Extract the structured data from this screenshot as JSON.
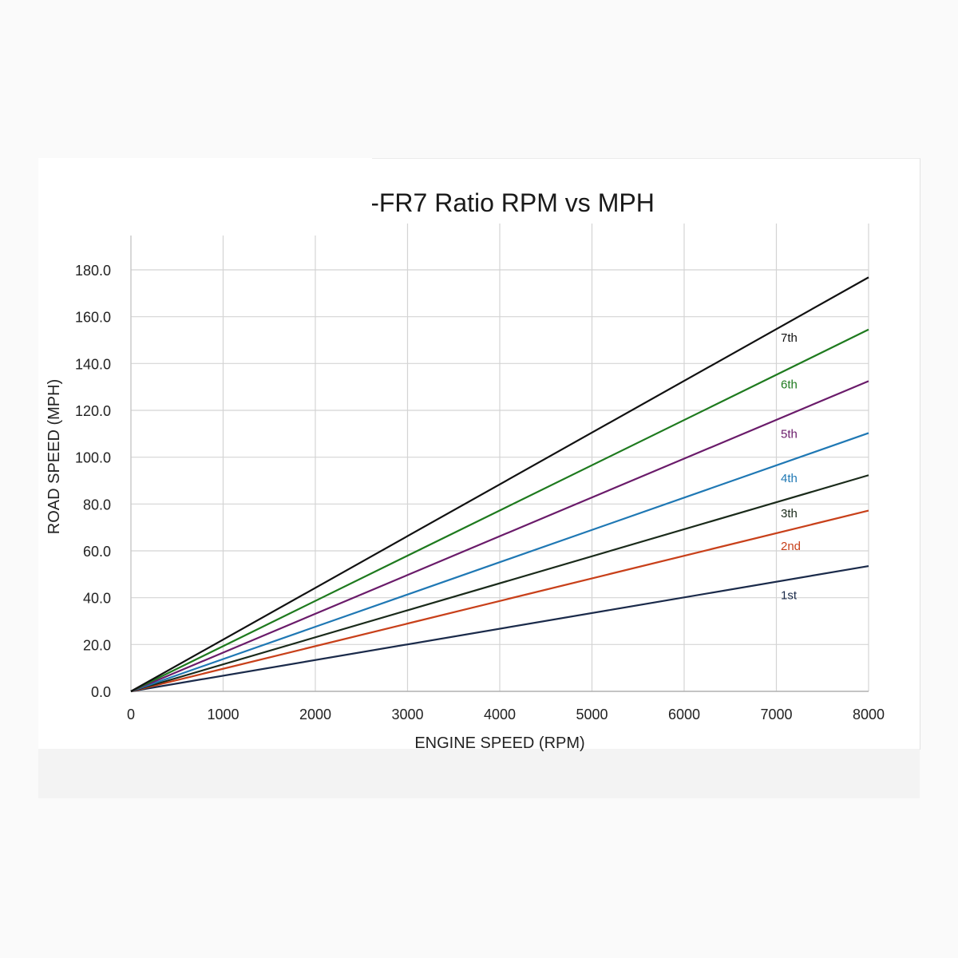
{
  "chart_data": {
    "type": "line",
    "title": "-FR7 Ratio RPM vs MPH",
    "xlabel": "ENGINE SPEED (RPM)",
    "ylabel": "ROAD SPEED (MPH)",
    "xlim": [
      0,
      8000
    ],
    "ylim": [
      0,
      180
    ],
    "x_ticks": [
      0,
      1000,
      2000,
      3000,
      4000,
      5000,
      6000,
      7000,
      8000
    ],
    "y_ticks": [
      0,
      20,
      40,
      60,
      80,
      100,
      120,
      140,
      160,
      180
    ],
    "y_tick_labels": [
      "0.0",
      "20.0",
      "40.0",
      "60.0",
      "80.0",
      "100.0",
      "120.0",
      "140.0",
      "160.0",
      "180.0"
    ],
    "x_tick_labels": [
      "0",
      "1000",
      "2000",
      "3000",
      "4000",
      "5000",
      "6000",
      "7000",
      "8000"
    ],
    "grid": true,
    "legend": "inline labels near x=7000",
    "series": [
      {
        "name": "1st",
        "x": [
          0,
          8000
        ],
        "y": [
          0,
          53.5
        ],
        "color": "#1a2a4a"
      },
      {
        "name": "2nd",
        "x": [
          0,
          8000
        ],
        "y": [
          0,
          77.2
        ],
        "color": "#c8401a"
      },
      {
        "name": "3th",
        "x": [
          0,
          8000
        ],
        "y": [
          0,
          92.3
        ],
        "color": "#1a2a1a"
      },
      {
        "name": "4th",
        "x": [
          0,
          8000
        ],
        "y": [
          0,
          110.3
        ],
        "color": "#1f78b4"
      },
      {
        "name": "5th",
        "x": [
          0,
          8000
        ],
        "y": [
          0,
          132.5
        ],
        "color": "#6a1b6a"
      },
      {
        "name": "6th",
        "x": [
          0,
          8000
        ],
        "y": [
          0,
          154.5
        ],
        "color": "#1e7a1e"
      },
      {
        "name": "7th",
        "x": [
          0,
          8000
        ],
        "y": [
          0,
          176.8
        ],
        "color": "#111111"
      }
    ],
    "gear_label_values": [
      41,
      62,
      76,
      91,
      110,
      131,
      151
    ]
  }
}
